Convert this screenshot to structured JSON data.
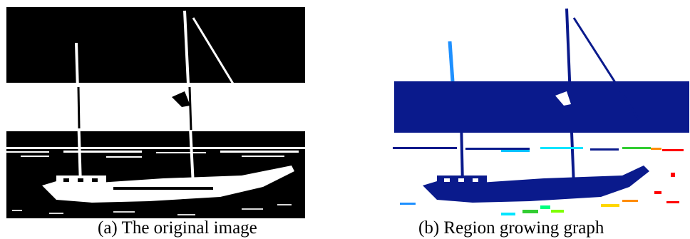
{
  "figure": {
    "panels": [
      {
        "caption": "(a) The original image",
        "colors": {
          "dark": "#000000",
          "light": "#ffffff"
        }
      },
      {
        "caption": "(b) Region growing graph",
        "colors": {
          "region": "#0a1a8c",
          "background": "#ffffff",
          "accents": [
            "#1e90ff",
            "#00e5ff",
            "#32cd32",
            "#ffd700",
            "#ff8c00",
            "#ff0000"
          ]
        }
      }
    ]
  }
}
